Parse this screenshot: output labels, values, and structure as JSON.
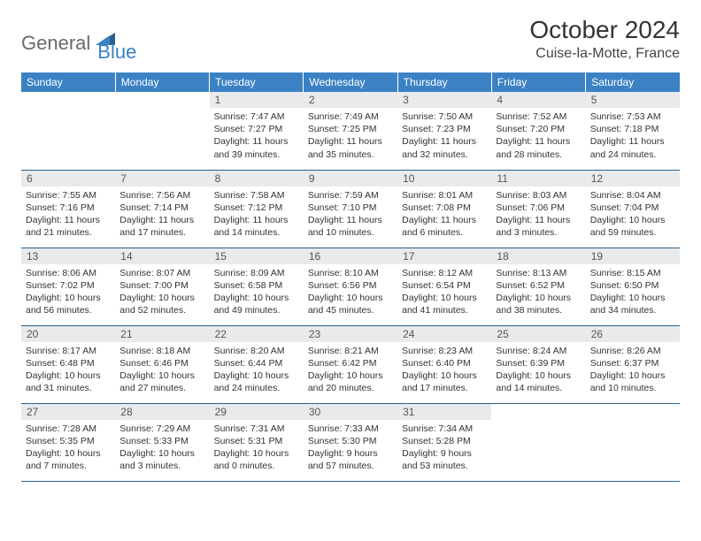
{
  "brand": {
    "part1": "General",
    "part2": "Blue"
  },
  "title": "October 2024",
  "location": "Cuise-la-Motte, France",
  "colors": {
    "header_bg": "#3b82c4",
    "daynum_bg": "#e8eaec",
    "row_border": "#2d5f8e",
    "logo_gray": "#6a6a6a",
    "logo_blue": "#3b82c4"
  },
  "weekdays": [
    "Sunday",
    "Monday",
    "Tuesday",
    "Wednesday",
    "Thursday",
    "Friday",
    "Saturday"
  ],
  "weeks": [
    [
      null,
      null,
      {
        "n": "1",
        "sr": "Sunrise: 7:47 AM",
        "ss": "Sunset: 7:27 PM",
        "dl": "Daylight: 11 hours and 39 minutes."
      },
      {
        "n": "2",
        "sr": "Sunrise: 7:49 AM",
        "ss": "Sunset: 7:25 PM",
        "dl": "Daylight: 11 hours and 35 minutes."
      },
      {
        "n": "3",
        "sr": "Sunrise: 7:50 AM",
        "ss": "Sunset: 7:23 PM",
        "dl": "Daylight: 11 hours and 32 minutes."
      },
      {
        "n": "4",
        "sr": "Sunrise: 7:52 AM",
        "ss": "Sunset: 7:20 PM",
        "dl": "Daylight: 11 hours and 28 minutes."
      },
      {
        "n": "5",
        "sr": "Sunrise: 7:53 AM",
        "ss": "Sunset: 7:18 PM",
        "dl": "Daylight: 11 hours and 24 minutes."
      }
    ],
    [
      {
        "n": "6",
        "sr": "Sunrise: 7:55 AM",
        "ss": "Sunset: 7:16 PM",
        "dl": "Daylight: 11 hours and 21 minutes."
      },
      {
        "n": "7",
        "sr": "Sunrise: 7:56 AM",
        "ss": "Sunset: 7:14 PM",
        "dl": "Daylight: 11 hours and 17 minutes."
      },
      {
        "n": "8",
        "sr": "Sunrise: 7:58 AM",
        "ss": "Sunset: 7:12 PM",
        "dl": "Daylight: 11 hours and 14 minutes."
      },
      {
        "n": "9",
        "sr": "Sunrise: 7:59 AM",
        "ss": "Sunset: 7:10 PM",
        "dl": "Daylight: 11 hours and 10 minutes."
      },
      {
        "n": "10",
        "sr": "Sunrise: 8:01 AM",
        "ss": "Sunset: 7:08 PM",
        "dl": "Daylight: 11 hours and 6 minutes."
      },
      {
        "n": "11",
        "sr": "Sunrise: 8:03 AM",
        "ss": "Sunset: 7:06 PM",
        "dl": "Daylight: 11 hours and 3 minutes."
      },
      {
        "n": "12",
        "sr": "Sunrise: 8:04 AM",
        "ss": "Sunset: 7:04 PM",
        "dl": "Daylight: 10 hours and 59 minutes."
      }
    ],
    [
      {
        "n": "13",
        "sr": "Sunrise: 8:06 AM",
        "ss": "Sunset: 7:02 PM",
        "dl": "Daylight: 10 hours and 56 minutes."
      },
      {
        "n": "14",
        "sr": "Sunrise: 8:07 AM",
        "ss": "Sunset: 7:00 PM",
        "dl": "Daylight: 10 hours and 52 minutes."
      },
      {
        "n": "15",
        "sr": "Sunrise: 8:09 AM",
        "ss": "Sunset: 6:58 PM",
        "dl": "Daylight: 10 hours and 49 minutes."
      },
      {
        "n": "16",
        "sr": "Sunrise: 8:10 AM",
        "ss": "Sunset: 6:56 PM",
        "dl": "Daylight: 10 hours and 45 minutes."
      },
      {
        "n": "17",
        "sr": "Sunrise: 8:12 AM",
        "ss": "Sunset: 6:54 PM",
        "dl": "Daylight: 10 hours and 41 minutes."
      },
      {
        "n": "18",
        "sr": "Sunrise: 8:13 AM",
        "ss": "Sunset: 6:52 PM",
        "dl": "Daylight: 10 hours and 38 minutes."
      },
      {
        "n": "19",
        "sr": "Sunrise: 8:15 AM",
        "ss": "Sunset: 6:50 PM",
        "dl": "Daylight: 10 hours and 34 minutes."
      }
    ],
    [
      {
        "n": "20",
        "sr": "Sunrise: 8:17 AM",
        "ss": "Sunset: 6:48 PM",
        "dl": "Daylight: 10 hours and 31 minutes."
      },
      {
        "n": "21",
        "sr": "Sunrise: 8:18 AM",
        "ss": "Sunset: 6:46 PM",
        "dl": "Daylight: 10 hours and 27 minutes."
      },
      {
        "n": "22",
        "sr": "Sunrise: 8:20 AM",
        "ss": "Sunset: 6:44 PM",
        "dl": "Daylight: 10 hours and 24 minutes."
      },
      {
        "n": "23",
        "sr": "Sunrise: 8:21 AM",
        "ss": "Sunset: 6:42 PM",
        "dl": "Daylight: 10 hours and 20 minutes."
      },
      {
        "n": "24",
        "sr": "Sunrise: 8:23 AM",
        "ss": "Sunset: 6:40 PM",
        "dl": "Daylight: 10 hours and 17 minutes."
      },
      {
        "n": "25",
        "sr": "Sunrise: 8:24 AM",
        "ss": "Sunset: 6:39 PM",
        "dl": "Daylight: 10 hours and 14 minutes."
      },
      {
        "n": "26",
        "sr": "Sunrise: 8:26 AM",
        "ss": "Sunset: 6:37 PM",
        "dl": "Daylight: 10 hours and 10 minutes."
      }
    ],
    [
      {
        "n": "27",
        "sr": "Sunrise: 7:28 AM",
        "ss": "Sunset: 5:35 PM",
        "dl": "Daylight: 10 hours and 7 minutes."
      },
      {
        "n": "28",
        "sr": "Sunrise: 7:29 AM",
        "ss": "Sunset: 5:33 PM",
        "dl": "Daylight: 10 hours and 3 minutes."
      },
      {
        "n": "29",
        "sr": "Sunrise: 7:31 AM",
        "ss": "Sunset: 5:31 PM",
        "dl": "Daylight: 10 hours and 0 minutes."
      },
      {
        "n": "30",
        "sr": "Sunrise: 7:33 AM",
        "ss": "Sunset: 5:30 PM",
        "dl": "Daylight: 9 hours and 57 minutes."
      },
      {
        "n": "31",
        "sr": "Sunrise: 7:34 AM",
        "ss": "Sunset: 5:28 PM",
        "dl": "Daylight: 9 hours and 53 minutes."
      },
      null,
      null
    ]
  ]
}
